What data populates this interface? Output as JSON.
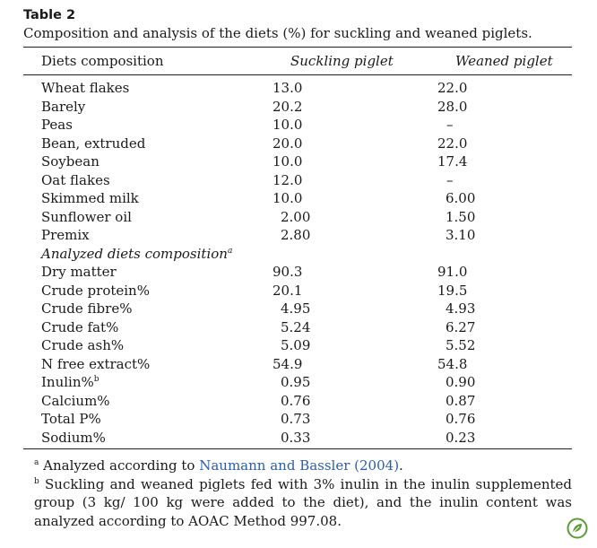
{
  "table": {
    "label": "Table 2",
    "caption": "Composition and analysis of the diets (%) for suckling and weaned piglets.",
    "columns": [
      "Diets composition",
      "Suckling piglet",
      "Weaned piglet"
    ],
    "diet_rows": [
      {
        "name": "Wheat flakes",
        "suckling": "13.0",
        "weaned": "22.0"
      },
      {
        "name": "Barely",
        "suckling": "20.2",
        "weaned": "28.0"
      },
      {
        "name": "Peas",
        "suckling": "10.0",
        "weaned": "–"
      },
      {
        "name": "Bean, extruded",
        "suckling": "20.0",
        "weaned": "22.0"
      },
      {
        "name": "Soybean",
        "suckling": "10.0",
        "weaned": "17.4"
      },
      {
        "name": "Oat flakes",
        "suckling": "12.0",
        "weaned": "–"
      },
      {
        "name": "Skimmed milk",
        "suckling": "10.0",
        "weaned": "6.00"
      },
      {
        "name": "Sunflower oil",
        "suckling": "2.00",
        "weaned": "1.50"
      },
      {
        "name": "Premix",
        "suckling": "2.80",
        "weaned": "3.10"
      }
    ],
    "section_label": "Analyzed diets composition",
    "section_sup": "a",
    "analyzed_rows": [
      {
        "name": "Dry matter",
        "suckling": "90.3",
        "weaned": "91.0"
      },
      {
        "name": "Crude protein%",
        "suckling": "20.1",
        "weaned": "19.5"
      },
      {
        "name": "Crude fibre%",
        "suckling": "4.95",
        "weaned": "4.93"
      },
      {
        "name": "Crude fat%",
        "suckling": "5.24",
        "weaned": "6.27"
      },
      {
        "name": "Crude ash%",
        "suckling": "5.09",
        "weaned": "5.52"
      },
      {
        "name": "N free extract%",
        "suckling": "54.9",
        "weaned": "54.8"
      },
      {
        "name": "Inulin%",
        "sup": "b",
        "suckling": "0.95",
        "weaned": "0.90"
      },
      {
        "name": "Calcium%",
        "suckling": "0.76",
        "weaned": "0.87"
      },
      {
        "name": "Total P%",
        "suckling": "0.73",
        "weaned": "0.76"
      },
      {
        "name": "Sodium%",
        "suckling": "0.33",
        "weaned": "0.23"
      }
    ]
  },
  "footnotes": {
    "a_mark": "a",
    "a_text": "Analyzed according to",
    "a_link": "Naumann and Bassler (2004)",
    "a_end": ".",
    "b_mark": "b",
    "b_text": "Suckling and weaned piglets fed with 3% inulin in the inulin supplemented group (3 kg/ 100 kg were added to the diet), and the inulin content was analyzed according to AOAC Method 997.08."
  },
  "badge": {
    "icon": "elsevier-leaf-icon",
    "color": "#5a9b3a"
  }
}
